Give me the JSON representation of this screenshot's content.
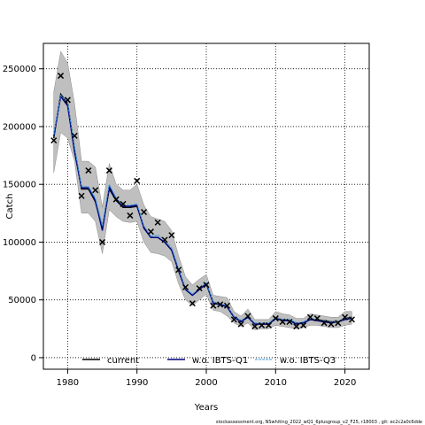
{
  "chart_data": {
    "type": "line",
    "xlabel": "Years",
    "ylabel": "Catch",
    "xlim": [
      1976.5,
      2023.5
    ],
    "ylim": [
      -10000,
      272000
    ],
    "x_ticks": [
      1980,
      1990,
      2000,
      2010,
      2020
    ],
    "y_ticks": [
      0,
      50000,
      100000,
      150000,
      200000,
      250000
    ],
    "y_tick_labels": [
      "0",
      "50000",
      "100000",
      "150000",
      "200000",
      "250000"
    ],
    "grid": true,
    "legend_position": "bottom-center",
    "footnote": "stockassessment.org, NSwhiting_2022_wQ1_6plusgroup_v2_F25, r18003 , git: ec2c2a0c6dde",
    "x": [
      1978,
      1979,
      1980,
      1981,
      1982,
      1983,
      1984,
      1985,
      1986,
      1987,
      1988,
      1989,
      1990,
      1991,
      1992,
      1993,
      1994,
      1995,
      1996,
      1997,
      1998,
      1999,
      2000,
      2001,
      2002,
      2003,
      2004,
      2005,
      2006,
      2007,
      2008,
      2009,
      2010,
      2011,
      2012,
      2013,
      2014,
      2015,
      2016,
      2017,
      2018,
      2019,
      2020,
      2021
    ],
    "observed": [
      188000,
      244000,
      223000,
      192000,
      140000,
      162000,
      145000,
      100000,
      162000,
      137000,
      133000,
      123000,
      153000,
      126000,
      109000,
      117000,
      102000,
      106000,
      76000,
      61000,
      47000,
      60000,
      63000,
      45000,
      46000,
      45000,
      33000,
      29000,
      36000,
      27000,
      28000,
      28000,
      34000,
      31000,
      31000,
      27000,
      28000,
      35000,
      34000,
      30000,
      29000,
      30000,
      35000,
      33000
    ],
    "ci_lower": [
      160000,
      195000,
      190000,
      170000,
      125000,
      125000,
      118000,
      90000,
      128000,
      122000,
      118000,
      117000,
      118000,
      100000,
      91000,
      90000,
      88000,
      83000,
      64000,
      50000,
      45000,
      50000,
      55000,
      41000,
      40000,
      36000,
      30000,
      27000,
      30000,
      24000,
      25000,
      25000,
      28000,
      27000,
      26000,
      25000,
      26000,
      28000,
      28000,
      27000,
      26000,
      26000,
      28000,
      29000
    ],
    "ci_upper": [
      230000,
      265000,
      255000,
      220000,
      170000,
      170000,
      165000,
      130000,
      168000,
      150000,
      145000,
      145000,
      150000,
      132000,
      122000,
      120000,
      118000,
      110000,
      88000,
      70000,
      63000,
      68000,
      72000,
      54000,
      53000,
      52000,
      40000,
      36000,
      42000,
      33000,
      33000,
      33000,
      40000,
      38000,
      37000,
      34000,
      34000,
      38000,
      37000,
      36000,
      35000,
      35000,
      40000,
      40000
    ],
    "series": [
      {
        "name": "current",
        "color": "#000000",
        "values": [
          190000,
          228000,
          220000,
          180000,
          146000,
          146000,
          135000,
          112000,
          146000,
          136000,
          130000,
          130000,
          131000,
          113000,
          104000,
          104000,
          100000,
          93000,
          75000,
          59000,
          54000,
          59000,
          64000,
          48000,
          46000,
          44000,
          35000,
          32000,
          35000,
          29000,
          29000,
          29000,
          34000,
          33000,
          32000,
          30000,
          30000,
          33000,
          33000,
          32000,
          31000,
          31000,
          34000,
          35000
        ]
      },
      {
        "name": "w.o. IBTS-Q1",
        "color": "#000080",
        "values": [
          192000,
          226000,
          218000,
          178000,
          147000,
          147000,
          136000,
          110000,
          148000,
          137000,
          131000,
          131000,
          132000,
          112000,
          104000,
          104000,
          100000,
          93000,
          76000,
          59000,
          54000,
          59000,
          64000,
          47000,
          46000,
          44000,
          35000,
          31000,
          35000,
          29000,
          29000,
          29000,
          34000,
          32000,
          32000,
          29000,
          30000,
          33000,
          32000,
          31000,
          30000,
          31000,
          33000,
          34000
        ]
      },
      {
        "name": "w.o. IBTS-Q3",
        "color": "#3a9ae0",
        "values": [
          193000,
          227000,
          221000,
          182000,
          148000,
          148000,
          138000,
          114000,
          150000,
          138000,
          132000,
          132000,
          133000,
          114000,
          105000,
          106000,
          102000,
          95000,
          77000,
          60000,
          55000,
          60000,
          65000,
          48000,
          47000,
          45000,
          36000,
          32000,
          36000,
          30000,
          30000,
          30000,
          35000,
          33000,
          33000,
          30000,
          31000,
          34000,
          33000,
          32000,
          31000,
          31000,
          34000,
          35000
        ]
      }
    ],
    "ci_color": "#bfbfbf",
    "marker_color": "#000000"
  }
}
